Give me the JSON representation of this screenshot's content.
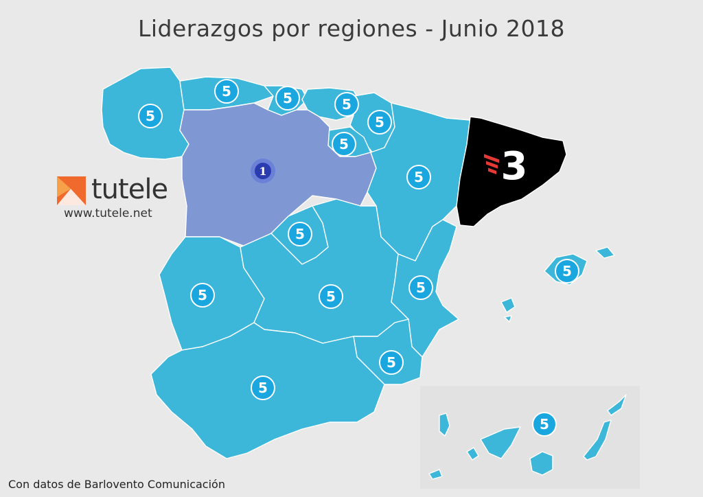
{
  "title": "Liderazgos por regiones - Junio 2018",
  "logo": {
    "brand": "tutele",
    "url": "www.tutele.net",
    "icon": "tutele-logo-icon"
  },
  "source": "Con datos de Barlovento Comunicación",
  "colors": {
    "telecinco_region": "#3db7d9",
    "la1_region": "#7f97d3",
    "tv3_region": "#000000",
    "telecinco_badge": "#1aa7e0",
    "la1_badge": "#2a3cb0",
    "tv3_accent": "#e53935"
  },
  "badges": {
    "telecinco": "5",
    "la1": "1",
    "tv3": "3"
  },
  "regions": [
    {
      "name": "Galicia",
      "leader": "telecinco"
    },
    {
      "name": "Asturias",
      "leader": "telecinco"
    },
    {
      "name": "Cantabria",
      "leader": "telecinco"
    },
    {
      "name": "País Vasco",
      "leader": "telecinco"
    },
    {
      "name": "Navarra",
      "leader": "telecinco"
    },
    {
      "name": "La Rioja",
      "leader": "telecinco"
    },
    {
      "name": "Castilla y León",
      "leader": "la1"
    },
    {
      "name": "Aragón",
      "leader": "telecinco"
    },
    {
      "name": "Cataluña",
      "leader": "tv3"
    },
    {
      "name": "Madrid",
      "leader": "telecinco"
    },
    {
      "name": "Extremadura",
      "leader": "telecinco"
    },
    {
      "name": "Castilla-La Mancha",
      "leader": "telecinco"
    },
    {
      "name": "Comunidad Valenciana",
      "leader": "telecinco"
    },
    {
      "name": "Baleares",
      "leader": "telecinco"
    },
    {
      "name": "Murcia",
      "leader": "telecinco"
    },
    {
      "name": "Andalucía",
      "leader": "telecinco"
    },
    {
      "name": "Canarias",
      "leader": "telecinco"
    }
  ]
}
